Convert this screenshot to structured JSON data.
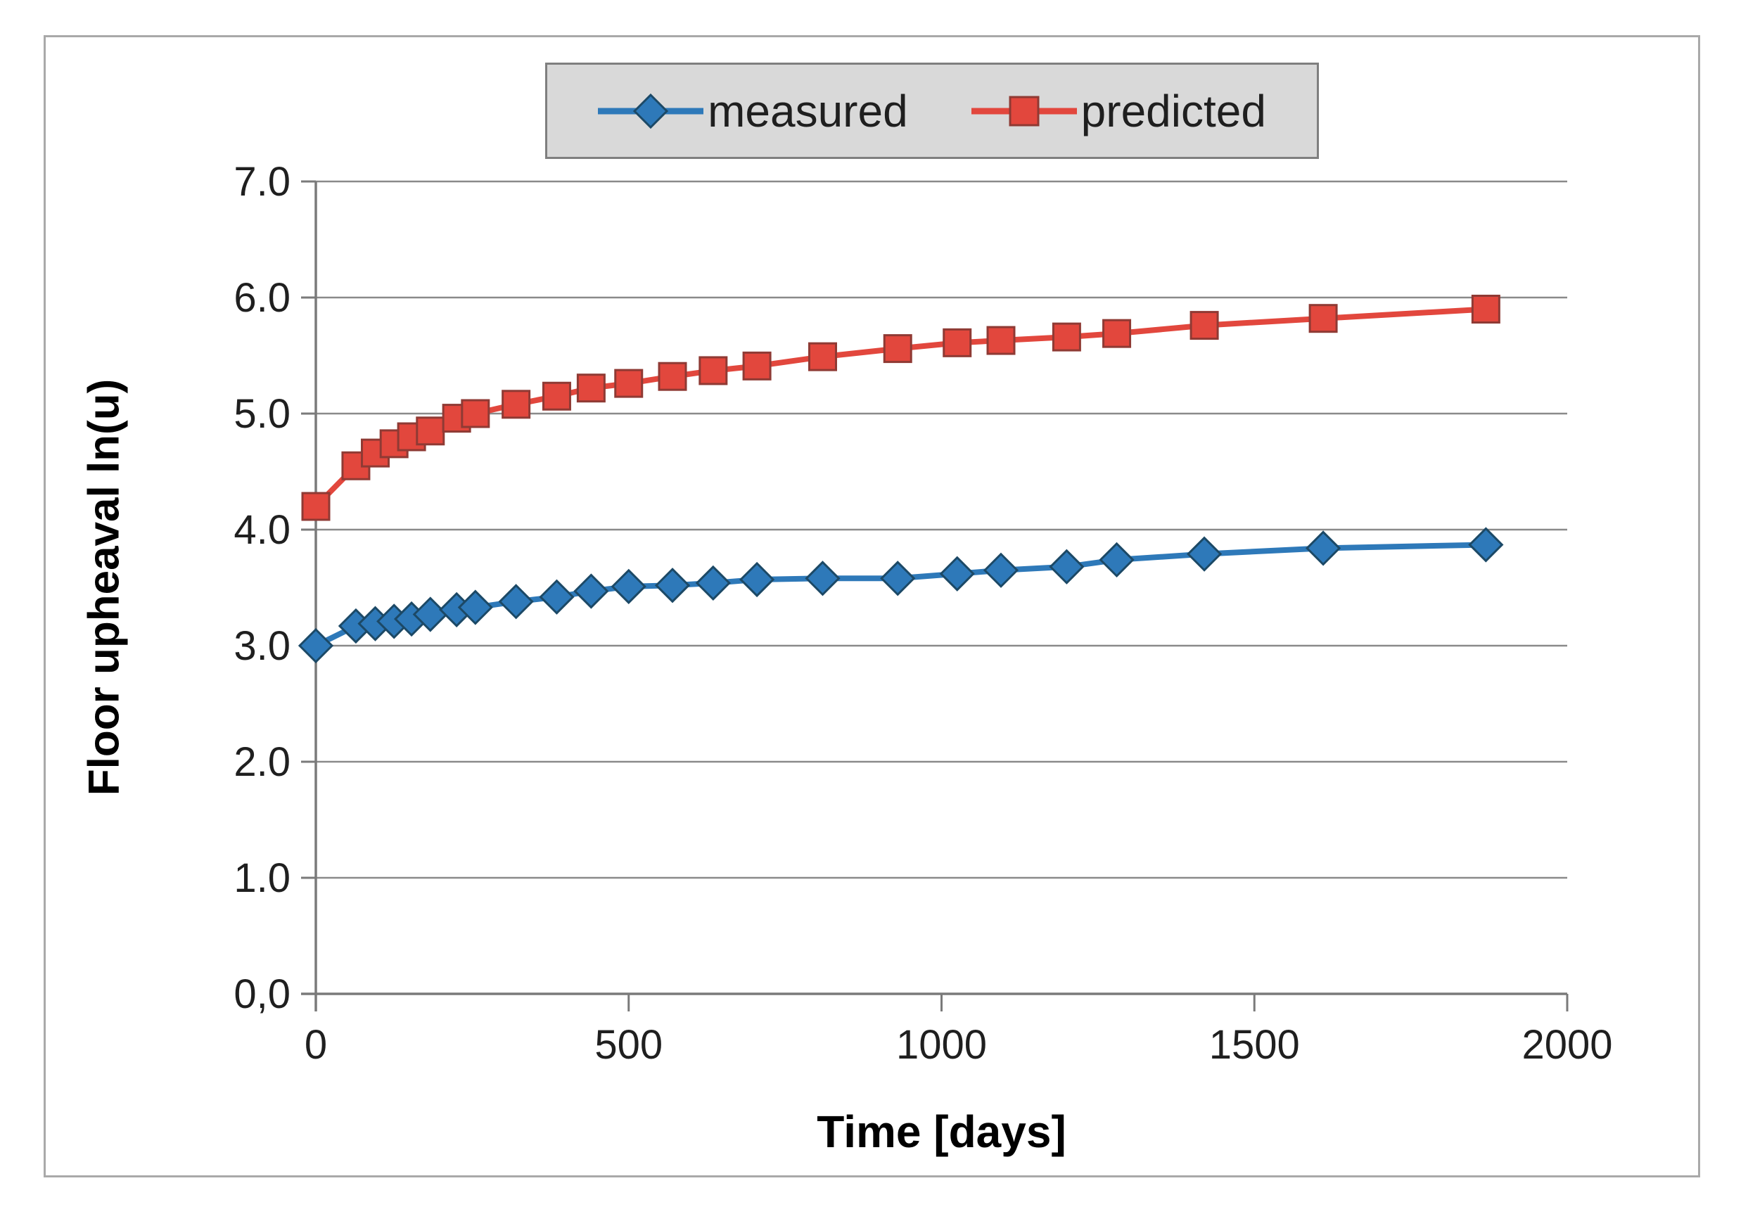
{
  "chart_data": {
    "type": "line",
    "title": "",
    "xlabel": "Time [days]",
    "ylabel": "Floor upheaval ln(u)",
    "xlim": [
      0,
      2000
    ],
    "ylim": [
      0,
      7
    ],
    "grid": "horizontal",
    "legend_position": "top-center",
    "x_ticks": {
      "values": [
        0,
        500,
        1000,
        1500,
        2000
      ],
      "labels": [
        "0",
        "500",
        "1000",
        "1500",
        "2000"
      ]
    },
    "y_ticks": {
      "values": [
        7,
        6,
        5,
        4,
        3,
        2,
        1,
        0
      ],
      "labels": [
        "7.0",
        "6.0",
        "5.0",
        "4.0",
        "3.0",
        "2.0",
        "1.0",
        "0,0"
      ]
    },
    "x": [
      0,
      64,
      95,
      125,
      153,
      183,
      225,
      255,
      320,
      385,
      440,
      500,
      570,
      635,
      705,
      810,
      930,
      1025,
      1095,
      1200,
      1280,
      1420,
      1610,
      1870
    ],
    "series": [
      {
        "name": "measured",
        "marker": "diamond",
        "color": "#2e79b9",
        "marker_border": "#1c4966",
        "values": [
          3.0,
          3.17,
          3.19,
          3.21,
          3.23,
          3.27,
          3.31,
          3.33,
          3.38,
          3.42,
          3.47,
          3.51,
          3.52,
          3.54,
          3.57,
          3.58,
          3.58,
          3.62,
          3.65,
          3.68,
          3.74,
          3.79,
          3.84,
          3.87
        ]
      },
      {
        "name": "predicted",
        "marker": "square",
        "color": "#e2473d",
        "marker_border": "#8f3a34",
        "values": [
          4.2,
          4.55,
          4.66,
          4.74,
          4.8,
          4.85,
          4.96,
          5.0,
          5.08,
          5.15,
          5.22,
          5.26,
          5.32,
          5.37,
          5.41,
          5.49,
          5.56,
          5.61,
          5.63,
          5.66,
          5.69,
          5.76,
          5.82,
          5.9
        ]
      }
    ]
  },
  "palette": {
    "chart_border": "#a9a9a9",
    "gridline": "#8a8a8a",
    "axis_line": "#7a7a7a",
    "tick_text": "#1f1f1f",
    "legend_bg": "#d9d9d9",
    "legend_border": "#7f7f7f",
    "background": "#ffffff"
  }
}
